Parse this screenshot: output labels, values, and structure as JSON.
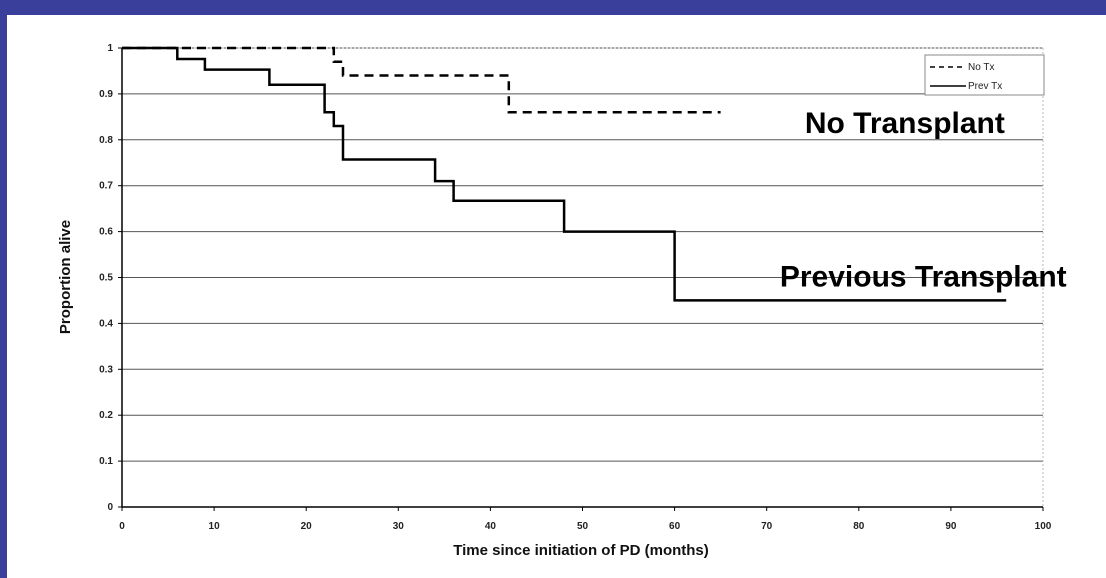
{
  "chart_data": {
    "type": "line",
    "title": "",
    "xlabel": "Time since initiation of PD (months)",
    "ylabel": "Proportion alive",
    "xlim": [
      0,
      100
    ],
    "ylim": [
      0,
      1
    ],
    "x_ticks": [
      0,
      10,
      20,
      30,
      40,
      50,
      60,
      70,
      80,
      90,
      100
    ],
    "y_ticks": [
      0,
      0.1,
      0.2,
      0.3,
      0.4,
      0.5,
      0.6,
      0.7,
      0.8,
      0.9,
      1
    ],
    "x_tick_labels": [
      "0",
      "10",
      "20",
      "30",
      "40",
      "50",
      "60",
      "70",
      "80",
      "90",
      "100"
    ],
    "y_tick_labels": [
      "0",
      "0.1",
      "0.2",
      "0.3",
      "0.4",
      "0.5",
      "0.6",
      "0.7",
      "0.8",
      "0.9",
      "1"
    ],
    "grid": "horizontal",
    "legend_position": "top-right",
    "series": [
      {
        "name": "No Tx",
        "style": "dashed",
        "color": "#000000",
        "step_points": [
          [
            0,
            1
          ],
          [
            23,
            1
          ],
          [
            23,
            0.97
          ],
          [
            24,
            0.97
          ],
          [
            24,
            0.94
          ],
          [
            42,
            0.94
          ],
          [
            42,
            0.9
          ],
          [
            42,
            0.86
          ],
          [
            65,
            0.86
          ]
        ]
      },
      {
        "name": "Prev Tx",
        "style": "solid",
        "color": "#000000",
        "step_points": [
          [
            0,
            1
          ],
          [
            6,
            1
          ],
          [
            6,
            0.976
          ],
          [
            9,
            0.976
          ],
          [
            9,
            0.953
          ],
          [
            16,
            0.953
          ],
          [
            16,
            0.92
          ],
          [
            22,
            0.92
          ],
          [
            22,
            0.86
          ],
          [
            23,
            0.86
          ],
          [
            23,
            0.83
          ],
          [
            24,
            0.83
          ],
          [
            24,
            0.757
          ],
          [
            34,
            0.757
          ],
          [
            34,
            0.71
          ],
          [
            36,
            0.71
          ],
          [
            36,
            0.667
          ],
          [
            48,
            0.667
          ],
          [
            48,
            0.6
          ],
          [
            60,
            0.6
          ],
          [
            60,
            0.45
          ],
          [
            96,
            0.45
          ]
        ]
      }
    ],
    "annotations": [
      {
        "text": "No Transplant",
        "x": 85,
        "y": 0.815
      },
      {
        "text": "Previous Transplant",
        "x": 87,
        "y": 0.48
      }
    ]
  }
}
